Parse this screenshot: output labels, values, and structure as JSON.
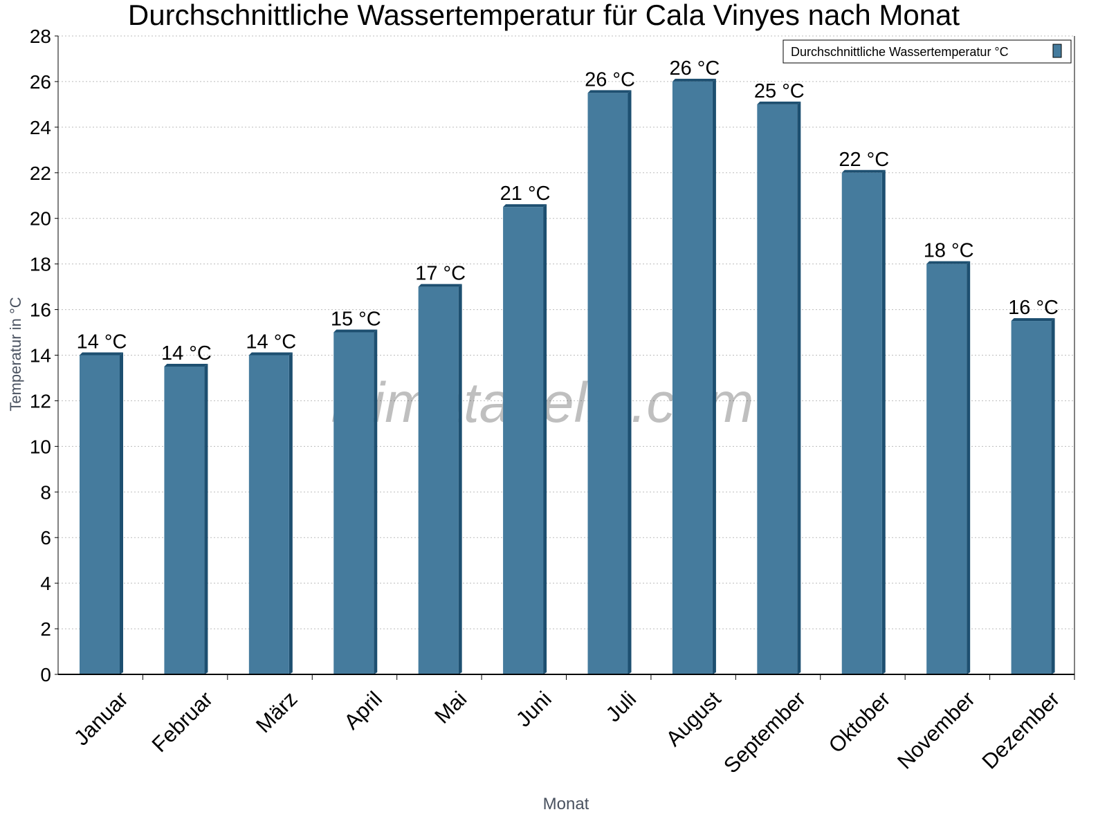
{
  "chart_data": {
    "type": "bar",
    "title": "Durchschnittliche Wassertemperatur für Cala Vinyes nach Monat",
    "xlabel": "Monat",
    "ylabel": "Temperatur in °C",
    "categories": [
      "Januar",
      "Februar",
      "März",
      "April",
      "Mai",
      "Juni",
      "Juli",
      "August",
      "September",
      "Oktober",
      "November",
      "Dezember"
    ],
    "series": [
      {
        "name": "Durchschnittliche Wassertemperatur °C",
        "values": [
          14,
          13.5,
          14,
          15,
          17,
          20.5,
          25.5,
          26,
          25,
          22,
          18,
          15.5
        ],
        "labels": [
          "14 °C",
          "14 °C",
          "14 °C",
          "15 °C",
          "17 °C",
          "21 °C",
          "26 °C",
          "26 °C",
          "25 °C",
          "22 °C",
          "18 °C",
          "16 °C"
        ],
        "color": "#457b9d",
        "side_color": "#1d4f70"
      }
    ],
    "ylim": [
      0,
      28
    ],
    "yticks": [
      0,
      2,
      4,
      6,
      8,
      10,
      12,
      14,
      16,
      18,
      20,
      22,
      24,
      26,
      28
    ],
    "grid": true,
    "legend_position": "top-right",
    "watermark": "klimatabelle.com"
  }
}
